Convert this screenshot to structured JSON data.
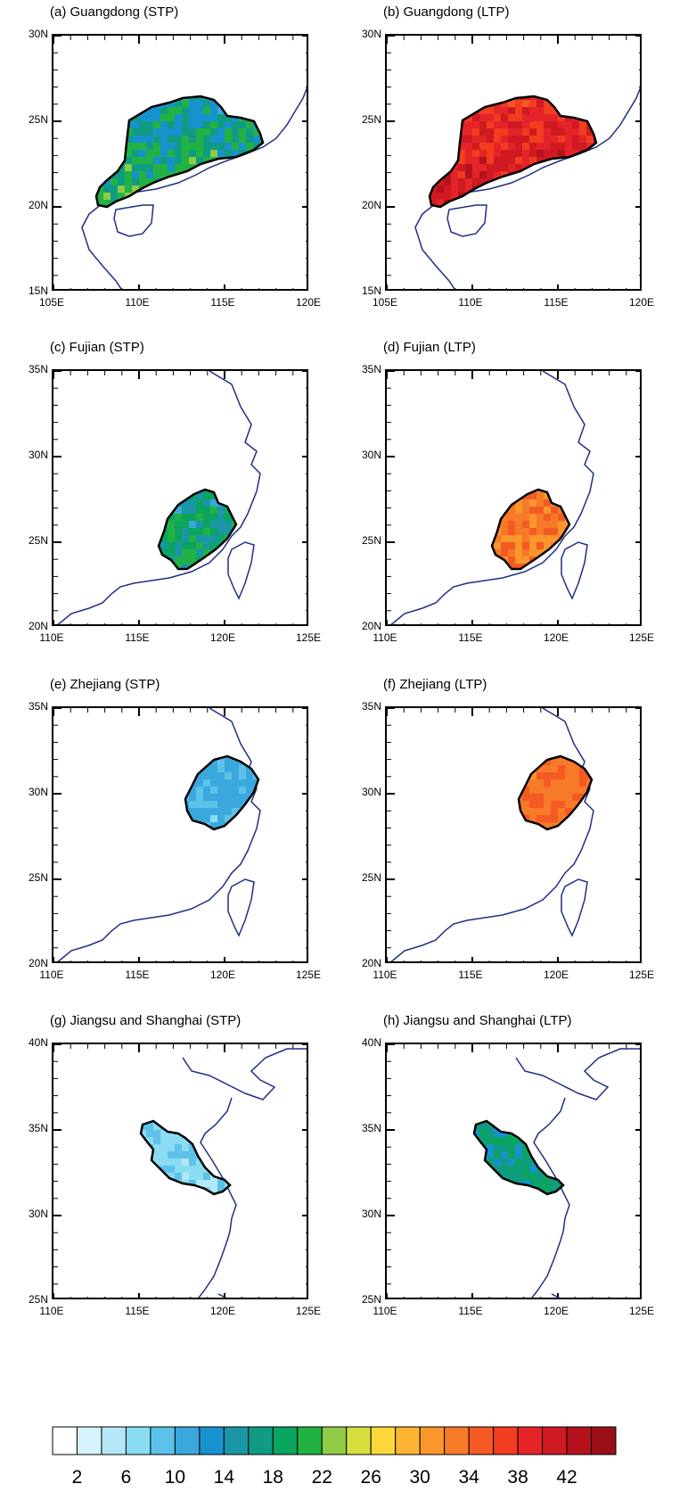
{
  "panels": [
    {
      "title": "(a) Guangdong (STP)",
      "lat_labels": [
        "30N",
        "25N",
        "20N",
        "15N"
      ],
      "lon_labels": [
        "105E",
        "110E",
        "115E",
        "120E"
      ],
      "region": "guangdong",
      "mode": "stp"
    },
    {
      "title": "(b) Guangdong (LTP)",
      "lat_labels": [
        "30N",
        "25N",
        "20N",
        "15N"
      ],
      "lon_labels": [
        "105E",
        "110E",
        "115E",
        "120E"
      ],
      "region": "guangdong",
      "mode": "ltp"
    },
    {
      "title": "(c) Fujian (STP)",
      "lat_labels": [
        "35N",
        "30N",
        "25N",
        "20N"
      ],
      "lon_labels": [
        "110E",
        "115E",
        "120E",
        "125E"
      ],
      "region": "fujian",
      "mode": "stp"
    },
    {
      "title": "(d) Fujian (LTP)",
      "lat_labels": [
        "35N",
        "30N",
        "25N",
        "20N"
      ],
      "lon_labels": [
        "110E",
        "115E",
        "120E",
        "125E"
      ],
      "region": "fujian",
      "mode": "ltp"
    },
    {
      "title": "(e) Zhejiang (STP)",
      "lat_labels": [
        "35N",
        "30N",
        "25N",
        "20N"
      ],
      "lon_labels": [
        "110E",
        "115E",
        "120E",
        "125E"
      ],
      "region": "zhejiang",
      "mode": "stp"
    },
    {
      "title": "(f) Zhejiang (LTP)",
      "lat_labels": [
        "35N",
        "30N",
        "25N",
        "20N"
      ],
      "lon_labels": [
        "110E",
        "115E",
        "120E",
        "125E"
      ],
      "region": "zhejiang",
      "mode": "ltp"
    },
    {
      "title": "(g) Jiangsu and Shanghai (STP)",
      "lat_labels": [
        "40N",
        "35N",
        "30N",
        "25N"
      ],
      "lon_labels": [
        "110E",
        "115E",
        "120E",
        "125E"
      ],
      "region": "jiangsu",
      "mode": "stp"
    },
    {
      "title": "(h) Jiangsu and Shanghai (LTP)",
      "lat_labels": [
        "40N",
        "35N",
        "30N",
        "25N"
      ],
      "lon_labels": [
        "110E",
        "115E",
        "120E",
        "125E"
      ],
      "region": "jiangsu",
      "mode": "ltp"
    }
  ],
  "colorbar": {
    "colors": [
      "#ffffff",
      "#d6f2fb",
      "#b4e8f8",
      "#8adcf3",
      "#5cc2ea",
      "#3aa8dc",
      "#1891cf",
      "#1a96a6",
      "#109c82",
      "#0aa55f",
      "#22b244",
      "#8fcb45",
      "#d4df3e",
      "#fcd83a",
      "#fcb432",
      "#fa962c",
      "#f77a28",
      "#f45a23",
      "#f13d20",
      "#e5242a",
      "#cf1a22",
      "#b5121d",
      "#9a0f18"
    ],
    "labels": [
      "2",
      "6",
      "10",
      "14",
      "18",
      "22",
      "26",
      "30",
      "34",
      "38",
      "42"
    ]
  },
  "palette": {
    "coast": "#1f2f86",
    "border": "#000000"
  }
}
